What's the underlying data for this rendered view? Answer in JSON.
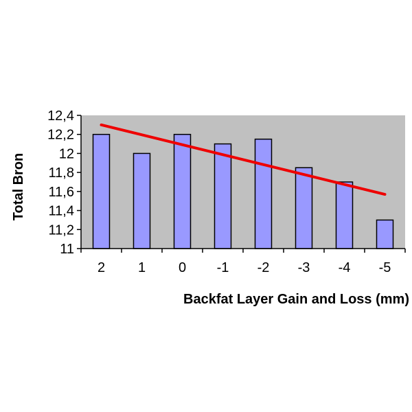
{
  "chart_data": {
    "type": "bar",
    "categories": [
      "2",
      "1",
      "0",
      "-1",
      "-2",
      "-3",
      "-4",
      "-5"
    ],
    "values": [
      12.2,
      12.0,
      12.2,
      12.1,
      12.15,
      11.85,
      11.7,
      11.3
    ],
    "trendline": {
      "start": 12.3,
      "end": 11.57
    },
    "xlabel": "Backfat Layer Gain and Loss (mm)",
    "ylabel": "Total Bron",
    "ylim": [
      11,
      12.4
    ],
    "yticks": [
      "11",
      "11,2",
      "11,4",
      "11,6",
      "11,8",
      "12",
      "12,2",
      "12,4"
    ],
    "grid": false,
    "colors": {
      "plot_background": "#c0c0c0",
      "bar_fill": "#9999ff",
      "bar_stroke": "#000000",
      "trendline": "#ee0000"
    }
  }
}
